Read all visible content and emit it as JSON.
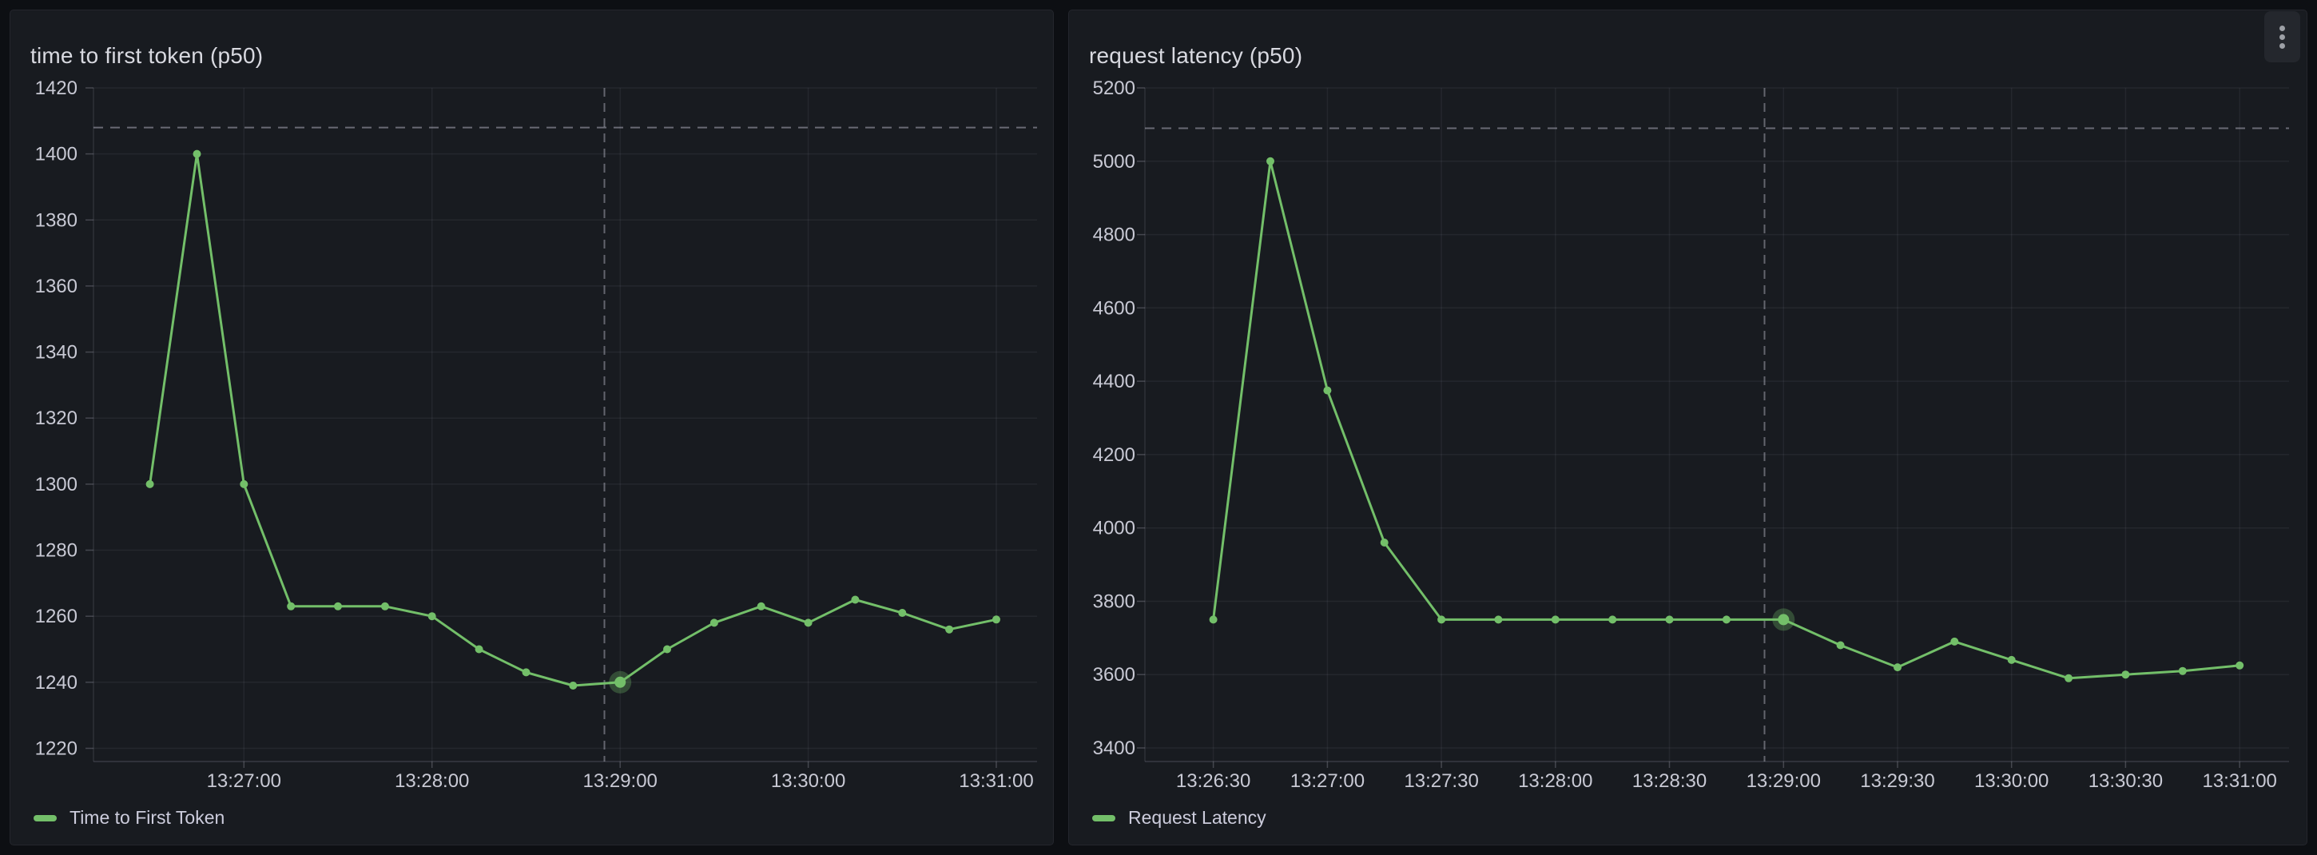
{
  "colors": {
    "page_background": "#0D0F13",
    "panel_background": "#181B20",
    "panel_border": "#24262D",
    "title_text": "#D8D9E0",
    "text": "#CCCCDC",
    "axis_text": "#C8C9D4",
    "series_green": "#73BF69",
    "grid_line": "rgba(204,204,220,0.07)",
    "axis_line": "rgba(204,204,220,0.18)",
    "tick_mark": "rgba(204,204,220,0.25)",
    "threshold_line": "rgba(204,204,220,0.45)",
    "crosshair_line": "rgba(204,204,220,0.42)",
    "highlight_halo": "rgba(115,191,105,0.30)",
    "menu_background": "#24272D",
    "menu_dots": "#9DA0A6"
  },
  "panels": [
    {
      "title": "time to first token (p50)",
      "legend_label": "Time to First Token",
      "has_menu": false
    },
    {
      "title": "request latency (p50)",
      "legend_label": "Request Latency",
      "has_menu": true,
      "menu_icon": "kebab-vertical-icon"
    }
  ],
  "chart_data": [
    {
      "type": "line",
      "title": "time to first token (p50)",
      "series": [
        {
          "name": "Time to First Token",
          "color": "#73BF69",
          "x": [
            "13:26:30",
            "13:26:45",
            "13:27:00",
            "13:27:15",
            "13:27:30",
            "13:27:45",
            "13:28:00",
            "13:28:15",
            "13:28:30",
            "13:28:45",
            "13:29:00",
            "13:29:15",
            "13:29:30",
            "13:29:45",
            "13:30:00",
            "13:30:15",
            "13:30:30",
            "13:30:45",
            "13:31:00"
          ],
          "values": [
            1300,
            1400,
            1300,
            1263,
            1263,
            1263,
            1260,
            1250,
            1243,
            1239,
            1240,
            1250,
            1258,
            1263,
            1258,
            1265,
            1261,
            1256,
            1259
          ]
        }
      ],
      "x_tick_labels": [
        "13:27:00",
        "13:28:00",
        "13:29:00",
        "13:30:00",
        "13:31:00"
      ],
      "y_tick_labels": [
        1220,
        1240,
        1260,
        1280,
        1300,
        1320,
        1340,
        1360,
        1380,
        1400,
        1420
      ],
      "xlim_time": [
        "13:26:12",
        "13:31:13"
      ],
      "ylim": [
        1216,
        1420
      ],
      "threshold_value": 1408,
      "crosshair_time": "13:28:55",
      "highlight_time": "13:29:00",
      "highlight_value": 1240,
      "grid": true,
      "legend_position": "bottom-left",
      "xlabel": "",
      "ylabel": ""
    },
    {
      "type": "line",
      "title": "request latency (p50)",
      "series": [
        {
          "name": "Request Latency",
          "color": "#73BF69",
          "x": [
            "13:26:30",
            "13:26:45",
            "13:27:00",
            "13:27:15",
            "13:27:30",
            "13:27:45",
            "13:28:00",
            "13:28:15",
            "13:28:30",
            "13:28:45",
            "13:29:00",
            "13:29:15",
            "13:29:30",
            "13:29:45",
            "13:30:00",
            "13:30:15",
            "13:30:30",
            "13:30:45",
            "13:31:00"
          ],
          "values": [
            3750,
            5000,
            4375,
            3960,
            3750,
            3750,
            3750,
            3750,
            3750,
            3750,
            3750,
            3680,
            3620,
            3690,
            3640,
            3590,
            3600,
            3610,
            3625
          ]
        }
      ],
      "x_tick_labels": [
        "13:26:30",
        "13:27:00",
        "13:27:30",
        "13:28:00",
        "13:28:30",
        "13:29:00",
        "13:29:30",
        "13:30:00",
        "13:30:30",
        "13:31:00"
      ],
      "y_tick_labels": [
        3400,
        3600,
        3800,
        4000,
        4200,
        4400,
        4600,
        4800,
        5000,
        5200
      ],
      "xlim_time": [
        "13:26:12",
        "13:31:13"
      ],
      "ylim": [
        3363,
        5200
      ],
      "threshold_value": 5090,
      "crosshair_time": "13:28:55",
      "highlight_time": "13:29:00",
      "highlight_value": 3750,
      "grid": true,
      "legend_position": "bottom-left",
      "xlabel": "",
      "ylabel": ""
    }
  ]
}
